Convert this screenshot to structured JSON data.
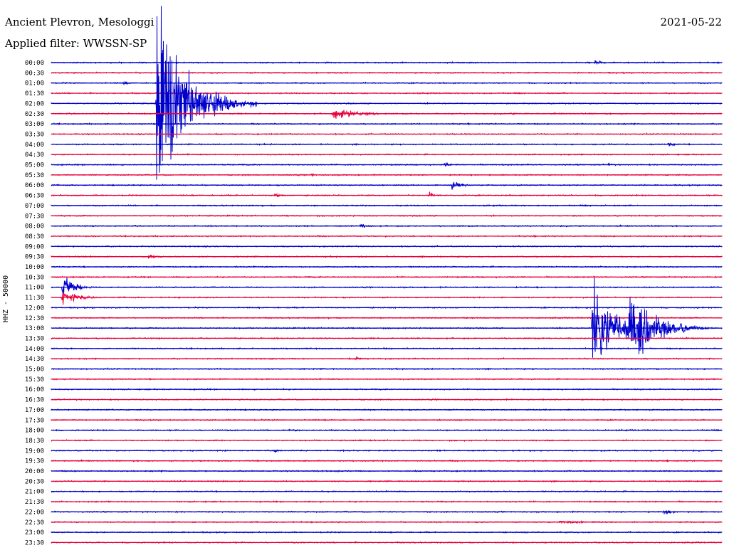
{
  "header": {
    "station": "Ancient Plevron, Mesologgi",
    "date": "2021-05-22",
    "filter": "Applied filter: WWSSN-SP"
  },
  "chart_data": {
    "type": "line",
    "subtype": "helicorder",
    "ylabel": "HHZ - 50000",
    "row_labels": [
      "00:00",
      "00:30",
      "01:00",
      "01:30",
      "02:00",
      "02:30",
      "03:00",
      "03:30",
      "04:00",
      "04:30",
      "05:00",
      "05:30",
      "06:00",
      "06:30",
      "07:00",
      "07:30",
      "08:00",
      "08:30",
      "09:00",
      "09:30",
      "10:00",
      "10:30",
      "11:00",
      "11:30",
      "12:00",
      "12:30",
      "13:00",
      "13:30",
      "14:00",
      "14:30",
      "15:00",
      "15:30",
      "16:00",
      "16:30",
      "17:00",
      "17:30",
      "18:00",
      "18:30",
      "19:00",
      "19:30",
      "20:00",
      "20:30",
      "21:00",
      "21:30",
      "22:00",
      "22:30",
      "23:00",
      "23:30"
    ],
    "row_minutes": 30,
    "colors": {
      "even_rows": "#0000cc",
      "odd_rows": "#e8003c"
    },
    "events": [
      {
        "row": 0,
        "minute": 24.3,
        "amplitude": 5,
        "duration": 0.5
      },
      {
        "row": 1,
        "minute": 5.0,
        "amplitude": 2,
        "duration": 1.0
      },
      {
        "row": 2,
        "minute": 3.2,
        "amplitude": 3,
        "duration": 0.5
      },
      {
        "row": 4,
        "minute": 4.7,
        "amplitude": 190,
        "duration": 1.5
      },
      {
        "row": 5,
        "minute": 12.6,
        "amplitude": 14,
        "duration": 1.2
      },
      {
        "row": 5,
        "minute": 20.5,
        "amplitude": 2,
        "duration": 1.0
      },
      {
        "row": 8,
        "minute": 3.0,
        "amplitude": 3,
        "duration": 0.3
      },
      {
        "row": 8,
        "minute": 27.6,
        "amplitude": 5,
        "duration": 0.3
      },
      {
        "row": 10,
        "minute": 17.6,
        "amplitude": 4,
        "duration": 0.3
      },
      {
        "row": 10,
        "minute": 24.9,
        "amplitude": 5,
        "duration": 0.2
      },
      {
        "row": 11,
        "minute": 11.6,
        "amplitude": 5,
        "duration": 0.1
      },
      {
        "row": 12,
        "minute": 17.9,
        "amplitude": 12,
        "duration": 0.4
      },
      {
        "row": 13,
        "minute": 10.0,
        "amplitude": 4,
        "duration": 0.5
      },
      {
        "row": 13,
        "minute": 16.9,
        "amplitude": 7,
        "duration": 0.3
      },
      {
        "row": 16,
        "minute": 13.8,
        "amplitude": 5,
        "duration": 0.5
      },
      {
        "row": 19,
        "minute": 4.3,
        "amplitude": 5,
        "duration": 0.5
      },
      {
        "row": 22,
        "minute": 0.5,
        "amplitude": 30,
        "duration": 0.5
      },
      {
        "row": 23,
        "minute": 0.5,
        "amplitude": 15,
        "duration": 0.8
      },
      {
        "row": 26,
        "minute": 24.2,
        "amplitude": 95,
        "duration": 1.2
      },
      {
        "row": 26,
        "minute": 25.8,
        "amplitude": 95,
        "duration": 1.2
      },
      {
        "row": 29,
        "minute": 13.6,
        "amplitude": 5,
        "duration": 0.3
      },
      {
        "row": 36,
        "minute": 10.8,
        "amplitude": 3,
        "duration": 0.6
      },
      {
        "row": 38,
        "minute": 6.2,
        "amplitude": 3,
        "duration": 0.3
      },
      {
        "row": 38,
        "minute": 10.0,
        "amplitude": 4,
        "duration": 0.3
      },
      {
        "row": 44,
        "minute": 27.4,
        "amplitude": 7,
        "duration": 0.4
      },
      {
        "row": 45,
        "minute": 22.7,
        "amplitude": 3,
        "duration": 2.0
      }
    ]
  }
}
